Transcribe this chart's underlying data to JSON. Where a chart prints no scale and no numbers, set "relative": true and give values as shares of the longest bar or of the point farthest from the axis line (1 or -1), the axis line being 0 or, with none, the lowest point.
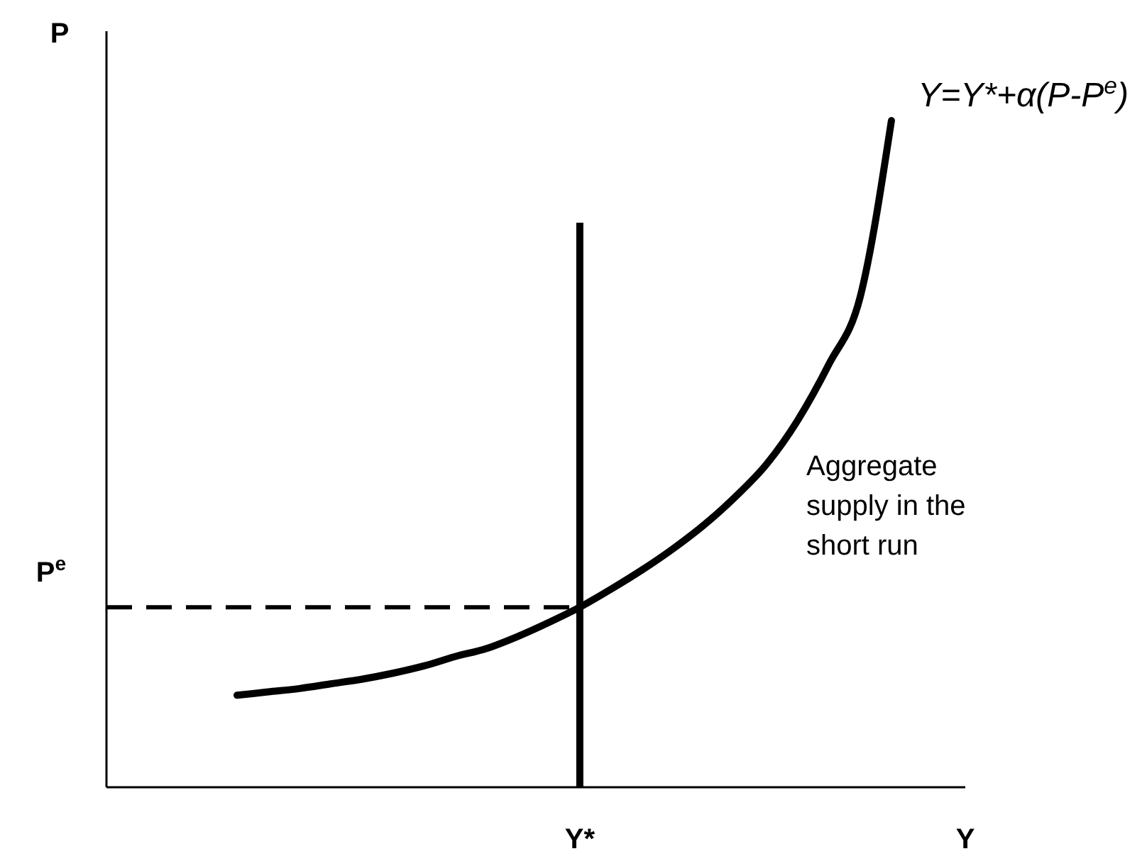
{
  "chart_data": {
    "type": "line",
    "relative": true,
    "xlabel": "Y",
    "line_style": "solid",
    "categories": [
      null,
      null,
      null,
      null,
      null,
      null,
      null,
      null,
      null,
      null,
      null,
      null,
      null,
      null,
      null,
      null,
      null,
      null,
      null,
      null,
      null,
      null
    ],
    "series": [
      {
        "color": "#000000",
        "values": [
          0.138,
          0.143,
          0.148,
          0.155,
          0.162,
          0.171,
          0.182,
          0.196,
          0.208,
          0.226,
          0.247,
          0.27,
          0.297,
          0.326,
          0.358,
          0.394,
          0.436,
          0.485,
          0.551,
          0.635,
          0.736,
          1
        ]
      }
    ],
    "ref_lines": [
      {
        "axis": "y",
        "value": 0.27,
        "label": "P$^{e}$",
        "color": "#000000",
        "line_style": "dashed"
      }
    ],
    "annotations": [
      "Y=Y*+α(P-P$^{e}$)",
      "Aggregate supply in the short run",
      "Y*",
      "P"
    ]
  }
}
